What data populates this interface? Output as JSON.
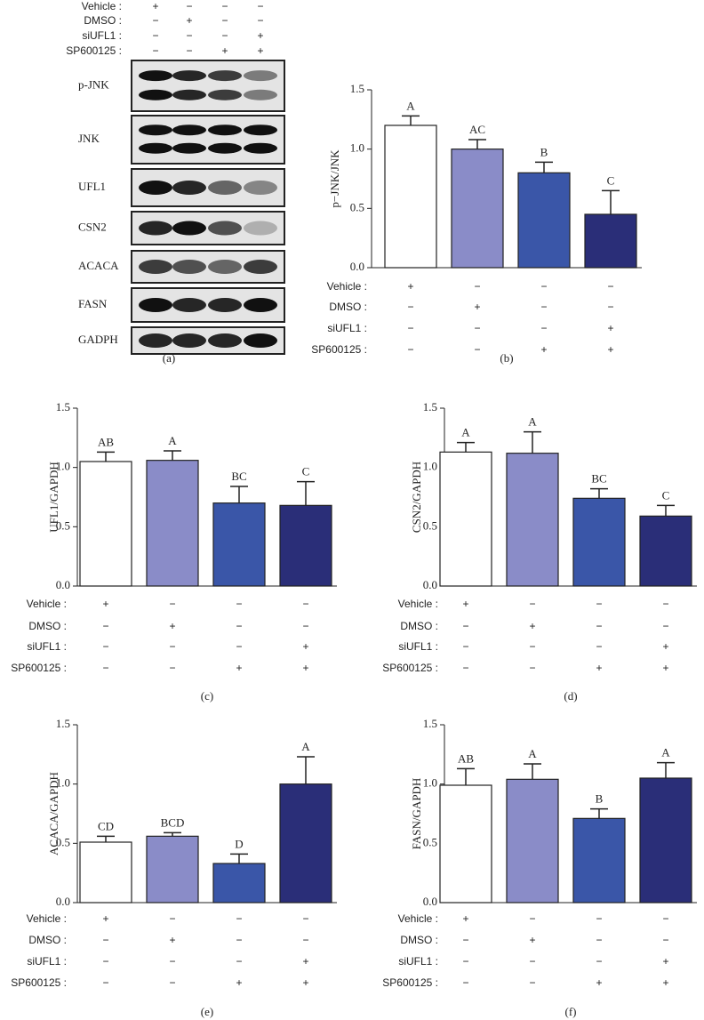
{
  "blot": {
    "treatments": [
      {
        "label": "Vehicle :",
        "signs": [
          "+",
          "−",
          "−",
          "−"
        ]
      },
      {
        "label": "DMSO :",
        "signs": [
          "−",
          "+",
          "−",
          "−"
        ]
      },
      {
        "label": "siUFL1 :",
        "signs": [
          "−",
          "−",
          "−",
          "+"
        ]
      },
      {
        "label": "SP600125 :",
        "signs": [
          "−",
          "−",
          "+",
          "+"
        ]
      }
    ],
    "proteins": [
      "p-JNK",
      "JNK",
      "UFL1",
      "CSN2",
      "ACACA",
      "FASN",
      "GADPH"
    ],
    "panel": "(a)"
  },
  "chart_data": [
    {
      "type": "bar",
      "panel": "(b)",
      "ylabel": "p−JNK/JNK",
      "values": [
        1.2,
        1.0,
        0.8,
        0.45
      ],
      "errors": [
        0.08,
        0.08,
        0.09,
        0.2
      ],
      "annotations": [
        "A",
        "AC",
        "B",
        "C"
      ],
      "colors": [
        "#ffffff",
        "#8a8cc8",
        "#3a56a8",
        "#2a2e78"
      ],
      "ylim": [
        0,
        1.5
      ],
      "yticks": [
        {
          "value": 0,
          "label": "0.0"
        },
        0.5,
        {
          "value": 1,
          "label": "1.0"
        },
        1.5
      ],
      "treatments": [
        {
          "label": "Vehicle :",
          "signs": [
            "+",
            "−",
            "−",
            "−"
          ]
        },
        {
          "label": "DMSO :",
          "signs": [
            "−",
            "+",
            "−",
            "−"
          ]
        },
        {
          "label": "siUFL1 :",
          "signs": [
            "−",
            "−",
            "−",
            "+"
          ]
        },
        {
          "label": "SP600125 :",
          "signs": [
            "−",
            "−",
            "+",
            "+"
          ]
        }
      ]
    },
    {
      "type": "bar",
      "panel": "(c)",
      "ylabel": "UFL1/GAPDH",
      "values": [
        1.05,
        1.06,
        0.7,
        0.68
      ],
      "errors": [
        0.08,
        0.08,
        0.14,
        0.2
      ],
      "annotations": [
        "AB",
        "A",
        "BC",
        "C"
      ],
      "colors": [
        "#ffffff",
        "#8a8cc8",
        "#3a56a8",
        "#2a2e78"
      ],
      "ylim": [
        0,
        1.5
      ],
      "yticks": [
        {
          "value": 0,
          "label": "0.0"
        },
        0.5,
        {
          "value": 1,
          "label": "1.0"
        },
        1.5
      ],
      "treatments": [
        {
          "label": "Vehicle :",
          "signs": [
            "+",
            "−",
            "−",
            "−"
          ]
        },
        {
          "label": "DMSO :",
          "signs": [
            "−",
            "+",
            "−",
            "−"
          ]
        },
        {
          "label": "siUFL1 :",
          "signs": [
            "−",
            "−",
            "−",
            "+"
          ]
        },
        {
          "label": "SP600125 :",
          "signs": [
            "−",
            "−",
            "+",
            "+"
          ]
        }
      ]
    },
    {
      "type": "bar",
      "panel": "(d)",
      "ylabel": "CSN2/GAPDH",
      "values": [
        1.13,
        1.12,
        0.74,
        0.59
      ],
      "errors": [
        0.08,
        0.18,
        0.08,
        0.09
      ],
      "annotations": [
        "A",
        "A",
        "BC",
        "C"
      ],
      "colors": [
        "#ffffff",
        "#8a8cc8",
        "#3a56a8",
        "#2a2e78"
      ],
      "ylim": [
        0,
        1.5
      ],
      "yticks": [
        {
          "value": 0,
          "label": "0.0"
        },
        0.5,
        {
          "value": 1,
          "label": "1.0"
        },
        1.5
      ],
      "treatments": [
        {
          "label": "Vehicle :",
          "signs": [
            "+",
            "−",
            "−",
            "−"
          ]
        },
        {
          "label": "DMSO :",
          "signs": [
            "−",
            "+",
            "−",
            "−"
          ]
        },
        {
          "label": "siUFL1 :",
          "signs": [
            "−",
            "−",
            "−",
            "+"
          ]
        },
        {
          "label": "SP600125 :",
          "signs": [
            "−",
            "−",
            "+",
            "+"
          ]
        }
      ]
    },
    {
      "type": "bar",
      "panel": "(e)",
      "ylabel": "ACACA/GAPDH",
      "values": [
        0.51,
        0.56,
        0.33,
        1.0
      ],
      "errors": [
        0.05,
        0.03,
        0.08,
        0.23
      ],
      "annotations": [
        "CD",
        "BCD",
        "D",
        "A"
      ],
      "colors": [
        "#ffffff",
        "#8a8cc8",
        "#3a56a8",
        "#2a2e78"
      ],
      "ylim": [
        0,
        1.5
      ],
      "yticks": [
        {
          "value": 0,
          "label": "0.0"
        },
        0.5,
        {
          "value": 1,
          "label": "1.0"
        },
        1.5
      ],
      "treatments": [
        {
          "label": "Vehicle :",
          "signs": [
            "+",
            "−",
            "−",
            "−"
          ]
        },
        {
          "label": "DMSO :",
          "signs": [
            "−",
            "+",
            "−",
            "−"
          ]
        },
        {
          "label": "siUFL1 :",
          "signs": [
            "−",
            "−",
            "−",
            "+"
          ]
        },
        {
          "label": "SP600125 :",
          "signs": [
            "−",
            "−",
            "+",
            "+"
          ]
        }
      ]
    },
    {
      "type": "bar",
      "panel": "(f)",
      "ylabel": "FASN/GAPDH",
      "values": [
        0.99,
        1.04,
        0.71,
        1.05
      ],
      "errors": [
        0.14,
        0.13,
        0.08,
        0.13
      ],
      "annotations": [
        "AB",
        "A",
        "B",
        "A"
      ],
      "colors": [
        "#ffffff",
        "#8a8cc8",
        "#3a56a8",
        "#2a2e78"
      ],
      "ylim": [
        0,
        1.5
      ],
      "yticks": [
        {
          "value": 0,
          "label": "0.0"
        },
        0.5,
        {
          "value": 1,
          "label": "1.0"
        },
        1.5
      ],
      "treatments": [
        {
          "label": "Vehicle :",
          "signs": [
            "+",
            "−",
            "−",
            "−"
          ]
        },
        {
          "label": "DMSO :",
          "signs": [
            "−",
            "+",
            "−",
            "−"
          ]
        },
        {
          "label": "siUFL1 :",
          "signs": [
            "−",
            "−",
            "−",
            "+"
          ]
        },
        {
          "label": "SP600125 :",
          "signs": [
            "−",
            "−",
            "+",
            "+"
          ]
        }
      ]
    }
  ]
}
